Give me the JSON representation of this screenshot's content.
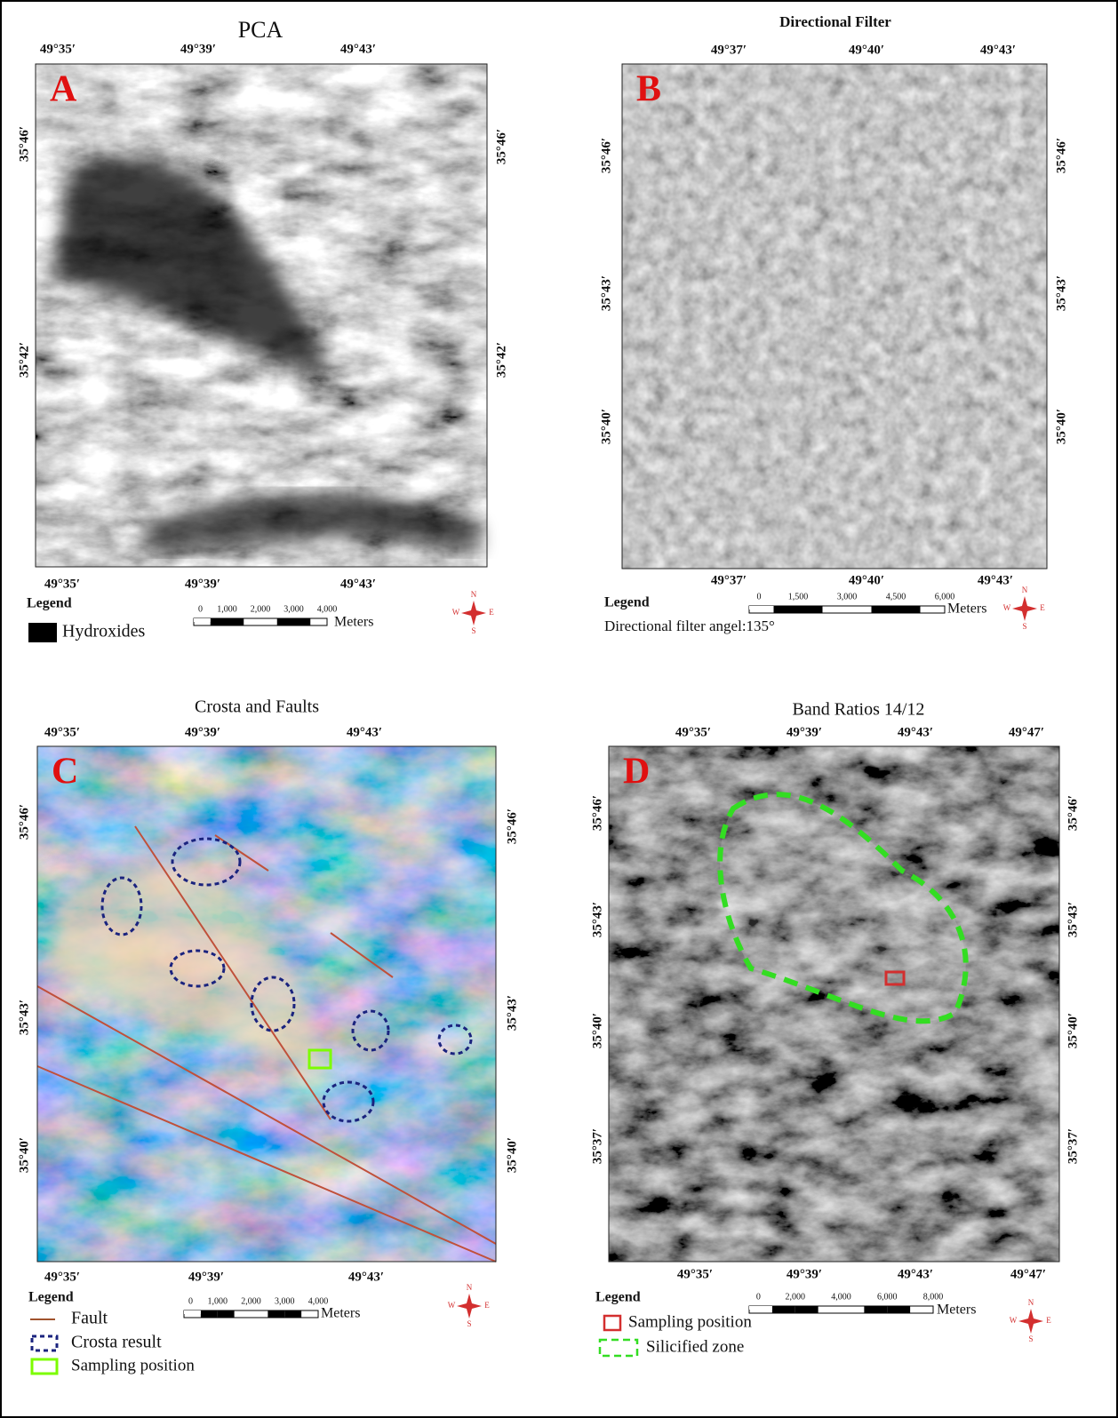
{
  "compass": {
    "n": "N",
    "s": "S",
    "e": "E",
    "w": "W"
  },
  "panels": [
    {
      "letter": "A",
      "title": "PCA",
      "top_labels": [
        "49°35′",
        "49°39′",
        "49°43′"
      ],
      "bottom_labels": [
        "49°35′",
        "49°39′",
        "49°43′"
      ],
      "left_labels": [
        "35°46′",
        "35°42′"
      ],
      "right_labels": [
        "35°46′",
        "35°42′"
      ],
      "legend_title": "Legend",
      "legend_items": [
        "Hydroxides"
      ],
      "scale_labels": [
        "0",
        "1,000",
        "2,000",
        "3,000",
        "4,000"
      ],
      "scale_unit": "Meters"
    },
    {
      "letter": "B",
      "title": "Directional Filter",
      "top_labels": [
        "49°37′",
        "49°40′",
        "49°43′"
      ],
      "bottom_labels": [
        "49°37′",
        "49°40′",
        "49°43′"
      ],
      "left_labels": [
        "35°46′",
        "35°43′",
        "35°40′"
      ],
      "right_labels": [
        "35°46′",
        "35°43′",
        "35°40′"
      ],
      "legend_title": "Legend",
      "note": "Directional filter angel:135°",
      "scale_labels": [
        "0",
        "1,500",
        "3,000",
        "4,500",
        "6,000"
      ],
      "scale_unit": "Meters"
    },
    {
      "letter": "C",
      "title": "Crosta and Faults",
      "top_labels": [
        "49°35′",
        "49°39′",
        "49°43′"
      ],
      "bottom_labels": [
        "49°35′",
        "49°39′",
        "49°43′"
      ],
      "left_labels": [
        "35°46′",
        "35°43′",
        "35°40′"
      ],
      "right_labels": [
        "35°46′",
        "35°43′",
        "35°40′"
      ],
      "legend_title": "Legend",
      "legend_items": [
        "Fault",
        "Crosta result",
        "Sampling position"
      ],
      "scale_labels": [
        "0",
        "1,000",
        "2,000",
        "3,000",
        "4,000"
      ],
      "scale_unit": "Meters"
    },
    {
      "letter": "D",
      "title": "Band Ratios 14/12",
      "top_labels": [
        "49°35′",
        "49°39′",
        "49°43′",
        "49°47′"
      ],
      "bottom_labels": [
        "49°35′",
        "49°39′",
        "49°43′",
        "49°47′"
      ],
      "left_labels": [
        "35°46′",
        "35°43′",
        "35°40′",
        "35°37′"
      ],
      "right_labels": [
        "35°46′",
        "35°43′",
        "35°40′",
        "35°37′"
      ],
      "legend_title": "Legend",
      "legend_items": [
        "Sampling position",
        "Silicified zone"
      ],
      "scale_labels": [
        "0",
        "2,000",
        "4,000",
        "6,000",
        "8,000"
      ],
      "scale_unit": "Meters"
    }
  ]
}
